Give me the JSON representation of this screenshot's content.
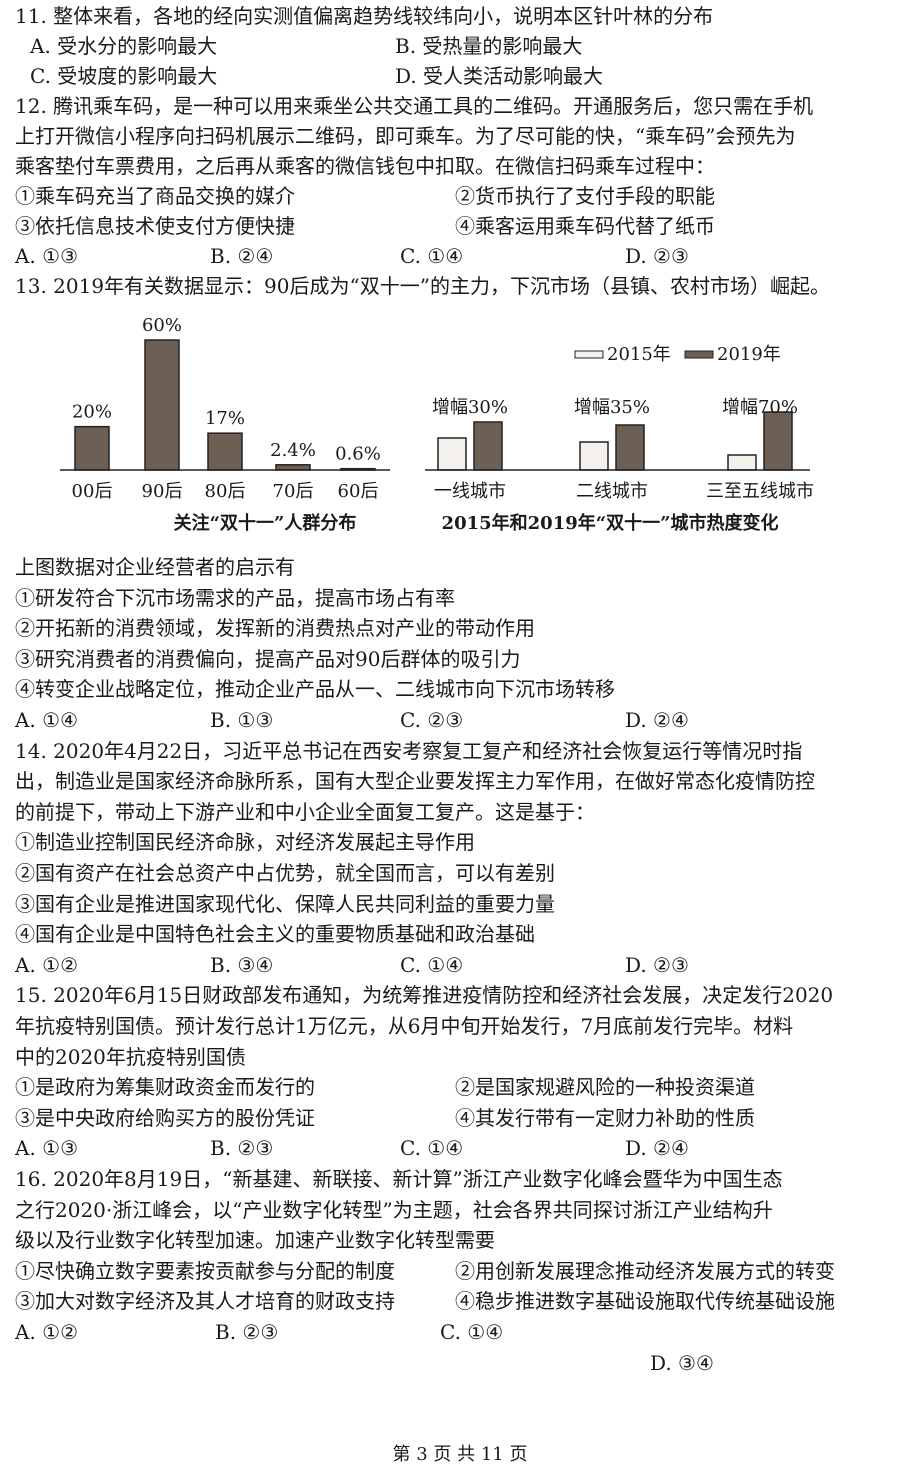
{
  "questions": [
    {
      "stem": [
        "11. 整体来看，各地的经向实测值偏离趋势线较纬向小，说明本区针叶林的分布"
      ],
      "options": [
        [
          "A. 受水分的影响最大",
          "B. 受热量的影响最大"
        ],
        [
          "C. 受坡度的影响最大",
          "D. 受人类活动影响最大"
        ]
      ]
    },
    {
      "stem": [
        "12. 腾讯乘车码，是一种可以用来乘坐公共交通工具的二维码。开通服务后，您只需在手机",
        "上打开微信小程序向扫码机展示二维码，即可乘车。为了尽可能的快，“乘车码”会预先为",
        "乘客垫付车票费用，之后再从乘客的微信钱包中扣取。在微信扫码乘车过程中："
      ],
      "items": [
        [
          "①乘车码充当了商品交换的媒介",
          "②货币执行了支付手段的职能"
        ],
        [
          "③依托信息技术使支付方便快捷",
          "④乘客运用乘车码代替了纸币"
        ]
      ],
      "options": [
        [
          "A. ①③",
          "B. ②④",
          "C. ①④",
          "D. ②③"
        ]
      ]
    },
    {
      "stem": [
        "13. 2019年有关数据显示：90后成为“双十一”的主力，下沉市场（县镇、农村市场）崛起。"
      ],
      "prompt": [
        "上图数据对企业经营者的启示有"
      ],
      "items": [
        [
          "①研发符合下沉市场需求的产品，提高市场占有率"
        ],
        [
          "②开拓新的消费领域，发挥新的消费热点对产业的带动作用"
        ],
        [
          "③研究消费者的消费偏向，提高产品对90后群体的吸引力"
        ],
        [
          "④转变企业战略定位，推动企业产品从一、二线城市向下沉市场转移"
        ]
      ],
      "options": [
        [
          "A. ①④",
          "B. ①③",
          "C. ②③",
          "D. ②④"
        ]
      ]
    },
    {
      "stem": [
        "14. 2020年4月22日，习近平总书记在西安考察复工复产和经济社会恢复运行等情况时指",
        "出，制造业是国家经济命脉所系，国有大型企业要发挥主力军作用，在做好常态化疫情防控",
        "的前提下，带动上下游产业和中小企业全面复工复产。这是基于："
      ],
      "items": [
        [
          "①制造业控制国民经济命脉，对经济发展起主导作用"
        ],
        [
          "②国有资产在社会总资产中占优势，就全国而言，可以有差别"
        ],
        [
          "③国有企业是推进国家现代化、保障人民共同利益的重要力量"
        ],
        [
          "④国有企业是中国特色社会主义的重要物质基础和政治基础"
        ]
      ],
      "options": [
        [
          "A. ①②",
          "B. ③④",
          "C. ①④",
          "D. ②③"
        ]
      ]
    },
    {
      "stem": [
        "15. 2020年6月15日财政部发布通知，为统筹推进疫情防控和经济社会发展，决定发行2020",
        "年抗疫特别国债。预计发行总计1万亿元，从6月中旬开始发行，7月底前发行完毕。材料",
        "中的2020年抗疫特别国债"
      ],
      "items": [
        [
          "①是政府为筹集财政资金而发行的",
          "②是国家规避风险的一种投资渠道"
        ],
        [
          "③是中央政府给购买方的股份凭证",
          "④其发行带有一定财力补助的性质"
        ]
      ],
      "options": [
        [
          "A. ①③",
          "B. ②③",
          "C. ①④",
          "D. ②④"
        ]
      ]
    },
    {
      "stem": [
        "16. 2020年8月19日，“新基建、新联接、新计算”浙江产业数字化峰会暨华为中国生态",
        "之行2020·浙江峰会，以“产业数字化转型”为主题，社会各界共同探讨浙江产业结构升",
        "级以及行业数字化转型加速。加速产业数字化转型需要"
      ],
      "items": [
        [
          "①尽快确立数字要素按贡献参与分配的制度",
          "②用创新发展理念推动经济发展方式的转变"
        ],
        [
          "③加大对数字经济及其人才培育的财政支持",
          "④稳步推进数字基础设施取代传统基础设施"
        ]
      ],
      "options": [
        [
          "A. ①②",
          "B. ②③",
          "C. ①④"
        ],
        [
          "D. ③④"
        ]
      ]
    }
  ],
  "chart_data": [
    {
      "type": "bar",
      "title": "关注“双十一”人群分布",
      "categories": [
        "00后",
        "90后",
        "80后",
        "70后",
        "60后"
      ],
      "values": [
        20,
        60,
        17,
        2.4,
        0.6
      ],
      "value_labels": [
        "20%",
        "60%",
        "17%",
        "2.4%",
        "0.6%"
      ],
      "color": "#6e5f55"
    },
    {
      "type": "grouped-bar",
      "title": "2015年和2019年“双十一”城市热度变化",
      "categories": [
        "一线城市",
        "二线城市",
        "三至五线城市"
      ],
      "series": [
        {
          "name": "2015年",
          "color": "#f4f1ec",
          "values": [
            32,
            28,
            15
          ]
        },
        {
          "name": "2019年",
          "color": "#6e5f55",
          "values": [
            48,
            45,
            58
          ]
        }
      ],
      "annotations": [
        "增幅30%",
        "增幅35%",
        "增幅70%"
      ]
    }
  ],
  "footer": "第 3 页 共 11 页"
}
